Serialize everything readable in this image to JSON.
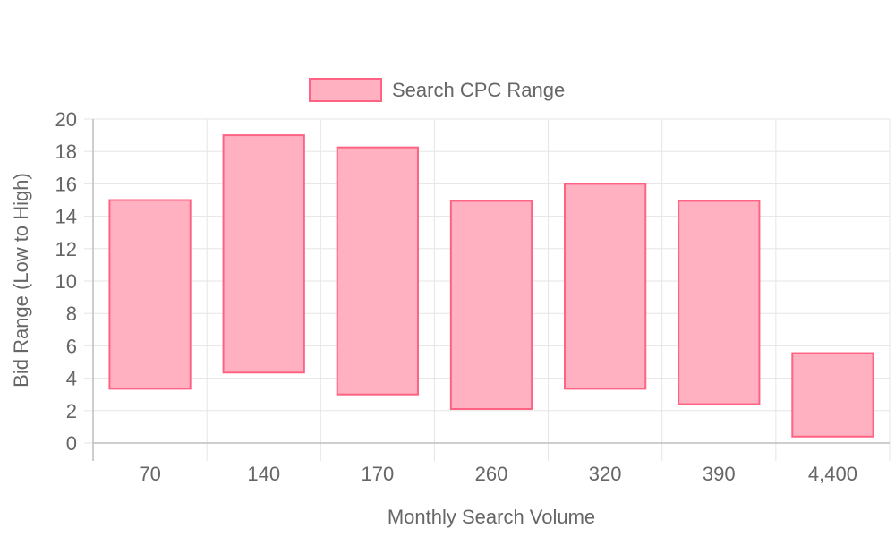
{
  "chart_data": {
    "type": "bar",
    "subtype": "floating-range",
    "categories": [
      "70",
      "140",
      "170",
      "260",
      "320",
      "390",
      "4,400"
    ],
    "series": [
      {
        "name": "Search CPC Range",
        "low": [
          3.35,
          4.35,
          3.0,
          2.1,
          3.35,
          2.4,
          0.4
        ],
        "high": [
          15.0,
          19.0,
          18.25,
          14.95,
          16.0,
          14.95,
          5.55
        ],
        "fill_color": "#ffb1c1",
        "border_color": "#ff6384"
      }
    ],
    "xlabel": "Monthly Search Volume",
    "ylabel": "Bid Range (Low to High)",
    "ylim": [
      0,
      20
    ],
    "yticks": [
      "0",
      "2",
      "4",
      "6",
      "8",
      "10",
      "12",
      "14",
      "16",
      "18",
      "20"
    ],
    "grid": true,
    "legend_position": "top"
  }
}
